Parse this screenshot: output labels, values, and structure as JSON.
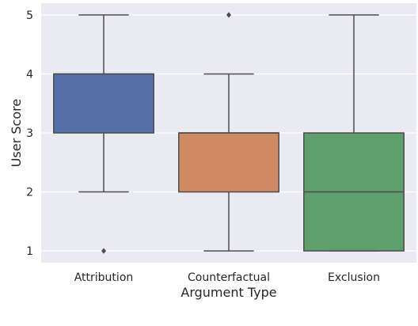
{
  "chart_data": {
    "type": "box",
    "xlabel": "Argument Type",
    "ylabel": "User Score",
    "ylim": [
      0.8,
      5.2
    ],
    "yticks": [
      1,
      2,
      3,
      4,
      5
    ],
    "grid": true,
    "background": "#eaeaf2",
    "categories": [
      {
        "name": "Attribution",
        "color": "#5470a6",
        "whisker_low": 2,
        "q1": 3,
        "median": 4,
        "q3": 4,
        "whisker_high": 5,
        "outliers": [
          1
        ]
      },
      {
        "name": "Counterfactual",
        "color": "#d08a63",
        "whisker_low": 1,
        "q1": 2,
        "median": 3,
        "q3": 3,
        "whisker_high": 4,
        "outliers": [
          5
        ]
      },
      {
        "name": "Exclusion",
        "color": "#5f9f6e",
        "whisker_low": 1,
        "q1": 1,
        "median": 2,
        "q3": 3,
        "whisker_high": 5,
        "outliers": []
      }
    ]
  }
}
